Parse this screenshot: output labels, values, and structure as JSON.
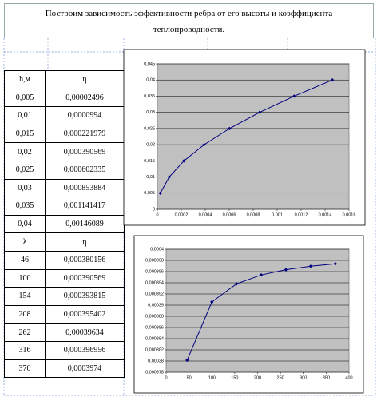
{
  "header": {
    "title": "Построим зависимость эффективности ребра от его высоты и коэффициента теплопроводности."
  },
  "table": {
    "rows": [
      [
        "h,м",
        "η"
      ],
      [
        "0,005",
        "0,00002496"
      ],
      [
        "0,01",
        "0,0000994"
      ],
      [
        "0,015",
        "0,000221979"
      ],
      [
        "0,02",
        "0,000390569"
      ],
      [
        "0,025",
        "0,000602335"
      ],
      [
        "0,03",
        "0,000853884"
      ],
      [
        "0,035",
        "0,001141417"
      ],
      [
        "0,04",
        "0,00146089"
      ],
      [
        "λ",
        "η"
      ],
      [
        "46",
        "0,000380156"
      ],
      [
        "100",
        "0,000390569"
      ],
      [
        "154",
        "0,000393815"
      ],
      [
        "208",
        "0,000395402"
      ],
      [
        "262",
        "0,00039634"
      ],
      [
        "316",
        "0,000396956"
      ],
      [
        "370",
        "0,0003974"
      ]
    ]
  },
  "chart_data": [
    {
      "type": "line",
      "color": "#000080",
      "x": [
        2.496e-05,
        9.94e-05,
        0.000221979,
        0.000390569,
        0.000602335,
        0.000853884,
        0.001141417,
        0.00146089
      ],
      "values": [
        0.005,
        0.01,
        0.015,
        0.02,
        0.025,
        0.03,
        0.035,
        0.04
      ],
      "xlim": [
        0,
        0.0016
      ],
      "xticks": [
        0,
        {
          "value": 0.0002,
          "label": "0,0002"
        },
        {
          "value": 0.0004,
          "label": "0,0004"
        },
        {
          "value": 0.0006,
          "label": "0,0006"
        },
        {
          "value": 0.0008,
          "label": "0,0008"
        },
        {
          "value": 0.001,
          "label": "0,001"
        },
        {
          "value": 0.0012,
          "label": "0,0012"
        },
        {
          "value": 0.0014,
          "label": "0,0014"
        },
        {
          "value": 0.0016,
          "label": "0,0016"
        }
      ],
      "ylim": [
        0,
        0.045
      ],
      "yticks": [
        0,
        {
          "value": 0.005,
          "label": "0,005"
        },
        {
          "value": 0.01,
          "label": "0,01"
        },
        {
          "value": 0.015,
          "label": "0,015"
        },
        {
          "value": 0.02,
          "label": "0,02"
        },
        {
          "value": 0.025,
          "label": "0,025"
        },
        {
          "value": 0.03,
          "label": "0,03"
        },
        {
          "value": 0.035,
          "label": "0,035"
        },
        {
          "value": 0.04,
          "label": "0,04"
        },
        {
          "value": 0.045,
          "label": "0,045"
        }
      ],
      "grid": true
    },
    {
      "type": "line",
      "color": "#000080",
      "x": [
        46,
        100,
        154,
        208,
        262,
        316,
        370
      ],
      "values": [
        0.000380156,
        0.000390569,
        0.000393815,
        0.000395402,
        0.00039634,
        0.000396956,
        0.0003974
      ],
      "xlim": [
        0,
        400
      ],
      "xticks": [
        0,
        50,
        100,
        150,
        200,
        250,
        300,
        350,
        400
      ],
      "ylim": [
        0.000378,
        0.0004
      ],
      "yticks": [
        {
          "value": 0.000378,
          "label": "0,000378"
        },
        {
          "value": 0.00038,
          "label": "0,00038"
        },
        {
          "value": 0.000382,
          "label": "0,000382"
        },
        {
          "value": 0.000384,
          "label": "0,000384"
        },
        {
          "value": 0.000386,
          "label": "0,000386"
        },
        {
          "value": 0.000388,
          "label": "0,000388"
        },
        {
          "value": 0.00039,
          "label": "0,00039"
        },
        {
          "value": 0.000392,
          "label": "0,000392"
        },
        {
          "value": 0.000394,
          "label": "0,000394"
        },
        {
          "value": 0.000396,
          "label": "0,000396"
        },
        {
          "value": 0.000398,
          "label": "0,000398"
        },
        {
          "value": 0.0004,
          "label": "0,0004"
        }
      ],
      "grid": true
    }
  ]
}
